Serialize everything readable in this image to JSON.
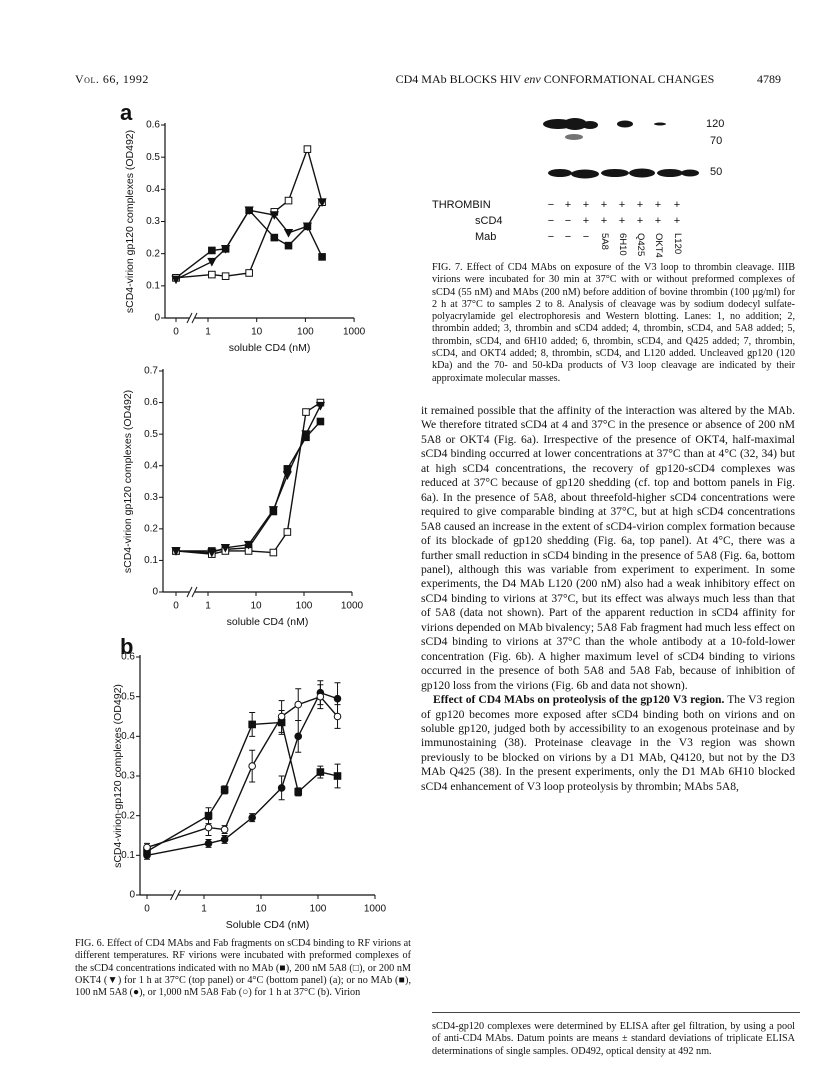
{
  "header": {
    "volume": "Vol. 66, 1992",
    "title": [
      "CD4 MAb BLOCKS HIV ",
      "env",
      " CONFORMATIONAL CHANGES"
    ],
    "page": "4789"
  },
  "chart_data": [
    {
      "type": "line",
      "panel": "a",
      "ylabel": "sCD4-virion gp120 complexes (OD492)",
      "xlabel": "soluble CD4 (nM)",
      "xscale": "log",
      "x_axis_break": true,
      "x": [
        0,
        1.2,
        2.3,
        7,
        23,
        45,
        110,
        220
      ],
      "xlim": [
        0,
        1000
      ],
      "xticks": [
        0,
        1,
        10,
        100,
        1000
      ],
      "ylim": [
        0,
        0.6
      ],
      "yticks": [
        0,
        0.1,
        0.2,
        0.3,
        0.4,
        0.5,
        0.6
      ],
      "series": [
        {
          "marker": "filled-square",
          "color": "#111111",
          "values": [
            0.125,
            0.21,
            0.215,
            0.335,
            0.25,
            0.225,
            0.285,
            0.19
          ]
        },
        {
          "marker": "open-square",
          "color": "#111111",
          "values": [
            0.125,
            0.135,
            0.13,
            0.14,
            0.33,
            0.365,
            0.525,
            0.36
          ]
        },
        {
          "marker": "filled-triangle",
          "color": "#111111",
          "values": [
            0.12,
            0.175,
            0.215,
            0.335,
            0.32,
            0.265,
            0.285,
            0.36
          ]
        }
      ]
    },
    {
      "type": "line",
      "ylabel": "sCD4-virion gp120 complexes (OD492)",
      "xlabel": "soluble CD4 (nM)",
      "xscale": "log",
      "x_axis_break": true,
      "x": [
        0,
        1.2,
        2.3,
        7,
        23,
        45,
        110,
        220
      ],
      "xlim": [
        0,
        1000
      ],
      "xticks": [
        0,
        1,
        10,
        100,
        1000
      ],
      "ylim": [
        0,
        0.7
      ],
      "yticks": [
        0,
        0.1,
        0.2,
        0.3,
        0.4,
        0.5,
        0.6,
        0.7
      ],
      "series": [
        {
          "marker": "filled-square",
          "color": "#111111",
          "values": [
            0.13,
            0.13,
            0.135,
            0.14,
            0.255,
            0.39,
            0.49,
            0.54
          ]
        },
        {
          "marker": "open-square",
          "color": "#111111",
          "values": [
            0.13,
            0.12,
            0.13,
            0.13,
            0.125,
            0.19,
            0.57,
            0.6
          ]
        },
        {
          "marker": "filled-triangle",
          "color": "#111111",
          "values": [
            0.13,
            0.125,
            0.14,
            0.15,
            0.26,
            0.37,
            0.5,
            0.59
          ]
        }
      ]
    },
    {
      "type": "line",
      "panel": "b",
      "ylabel": "sCD4-virion-gp120 complexes (OD492)",
      "xlabel": "Soluble CD4 (nM)",
      "xscale": "log",
      "x_axis_break": true,
      "x": [
        0,
        1.2,
        2.3,
        7,
        23,
        45,
        110,
        220
      ],
      "xlim": [
        0,
        1000
      ],
      "xticks": [
        0,
        1,
        10,
        100,
        1000
      ],
      "ylim": [
        0,
        0.6
      ],
      "yticks": [
        0,
        0.1,
        0.2,
        0.3,
        0.4,
        0.5,
        0.6
      ],
      "series": [
        {
          "marker": "filled-square",
          "color": "#111111",
          "values": [
            0.11,
            0.2,
            0.265,
            0.43,
            0.435,
            0.26,
            0.31,
            0.3
          ],
          "errors": [
            0.01,
            0.02,
            0.01,
            0.03,
            0.03,
            0.01,
            0.015,
            0.03
          ]
        },
        {
          "marker": "filled-circle",
          "color": "#111111",
          "values": [
            0.1,
            0.13,
            0.14,
            0.195,
            0.27,
            0.4,
            0.51,
            0.495
          ],
          "errors": [
            0.01,
            0.01,
            0.01,
            0.01,
            0.03,
            0.04,
            0.03,
            0.04
          ]
        },
        {
          "marker": "open-circle",
          "color": "#111111",
          "values": [
            0.12,
            0.17,
            0.165,
            0.325,
            0.45,
            0.48,
            0.5,
            0.45
          ],
          "errors": [
            0.01,
            0.02,
            0.01,
            0.04,
            0.04,
            0.04,
            0.03,
            0.03
          ]
        }
      ]
    }
  ],
  "figure6_caption": {
    "label": "FIG. 6.",
    "text": "Effect of CD4 MAbs and Fab fragments on sCD4 binding to RF virions at different temperatures. RF virions were incubated with preformed complexes of the sCD4 concentrations indicated with no MAb (■), 200 nM 5A8 (□), or 200 nM OKT4 (▼) for 1 h at 37°C (top panel) or 4°C (bottom panel) (a); or no MAb (■), 100 nM 5A8 (●), or 1,000 nM 5A8 Fab (○) for 1 h at 37°C (b). Virion"
  },
  "figure7": {
    "band_labels": [
      "120",
      "70",
      "50"
    ],
    "rows": [
      {
        "label": "THROMBIN",
        "cells": [
          "−",
          "+",
          "+",
          "+",
          "+",
          "+",
          "+",
          "+"
        ]
      },
      {
        "label": "sCD4",
        "cells": [
          "−",
          "−",
          "+",
          "+",
          "+",
          "+",
          "+",
          "+"
        ]
      },
      {
        "label": "Mab",
        "cells": [
          "−",
          "−",
          "−",
          "5A8",
          "6H10",
          "Q425",
          "OKT4",
          "L120"
        ]
      }
    ],
    "caption": {
      "label": "FIG. 7.",
      "text": "Effect of CD4 MAbs on exposure of the V3 loop to thrombin cleavage. IIIB virions were incubated for 30 min at 37°C with or without preformed complexes of sCD4 (55 nM) and MAbs (200 nM) before addition of bovine thrombin (100 µg/ml) for 2 h at 37°C to samples 2 to 8. Analysis of cleavage was by sodium dodecyl sulfate-polyacrylamide gel electrophoresis and Western blotting. Lanes: 1, no addition; 2, thrombin added; 3, thrombin and sCD4 added; 4, thrombin, sCD4, and 5A8 added; 5, thrombin, sCD4, and 6H10 added; 6, thrombin, sCD4, and Q425 added; 7, thrombin, sCD4, and OKT4 added; 8, thrombin, sCD4, and L120 added. Uncleaved gp120 (120 kDa) and the 70- and 50-kDa products of V3 loop cleavage are indicated by their approximate molecular masses."
    }
  },
  "body": [
    {
      "text": "it remained possible that the affinity of the interaction was altered by the MAb. We therefore titrated sCD4 at 4 and 37°C in the presence or absence of 200 nM 5A8 or OKT4 (Fig. 6a). Irrespective of the presence of OKT4, half-maximal sCD4 binding occurred at lower concentrations at 37°C than at 4°C (32, 34) but at high sCD4 concentrations, the recovery of gp120-sCD4 complexes was reduced at 37°C because of gp120 shedding (cf. top and bottom panels in Fig. 6a). In the presence of 5A8, about threefold-higher sCD4 concentrations were required to give comparable binding at 37°C, but at high sCD4 concentrations 5A8 caused an increase in the extent of sCD4-virion complex formation because of its blockade of gp120 shedding (Fig. 6a, top panel). At 4°C, there was a further small reduction in sCD4 binding in the presence of 5A8 (Fig. 6a, bottom panel), although this was variable from experiment to experiment. In some experiments, the D4 MAb L120 (200 nM) also had a weak inhibitory effect on sCD4 binding to virions at 37°C, but its effect was always much less than that of 5A8 (data not shown). Part of the apparent reduction in sCD4 affinity for virions depended on MAb bivalency; 5A8 Fab fragment had much less effect on sCD4 binding to virions at 37°C than the whole antibody at a 10-fold-lower concentration (Fig. 6b). A higher maximum level of sCD4 binding to virions occurred in the presence of both 5A8 and 5A8 Fab, because of inhibition of gp120 loss from the virions (Fig. 6b and data not shown)."
    },
    {
      "heading": "Effect of CD4 MAbs on proteolysis of the gp120 V3 region.",
      "text": "The V3 region of gp120 becomes more exposed after sCD4 binding both on virions and on soluble gp120, judged both by accessibility to an exogenous proteinase and by immunostaining (38). Proteinase cleavage in the V3 region was shown previously to be blocked on virions by a D1 MAb, Q4120, but not by the D3 MAb Q425 (38). In the present experiments, only the D1 MAb 6H10 blocked sCD4 enhancement of V3 loop proteolysis by thrombin; MAbs 5A8,"
    }
  ],
  "footnote": "sCD4-gp120 complexes were determined by ELISA after gel filtration, by using a pool of anti-CD4 MAbs. Datum points are means ± standard deviations of triplicate ELISA determinations of single samples. OD492, optical density at 492 nm."
}
